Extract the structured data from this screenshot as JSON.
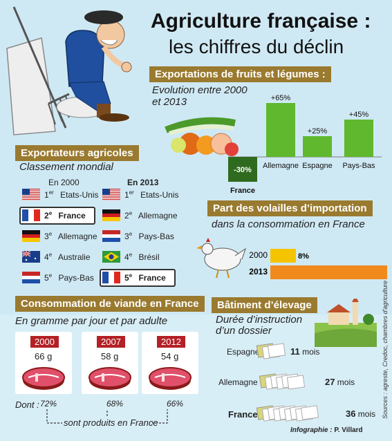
{
  "header": {
    "title": "Agriculture française :",
    "subtitle": "les chiffres du déclin"
  },
  "exports": {
    "heading": "Exportations de fruits et légumes :",
    "subtitle_line1": "Evolution entre 2000",
    "subtitle_line2": "et 2013",
    "chart_data": {
      "type": "bar",
      "title": "Exportations de fruits et légumes : Evolution entre 2000 et 2013",
      "categories": [
        "France",
        "Allemagne",
        "Espagne",
        "Pays-Bas"
      ],
      "values": [
        -30,
        65,
        25,
        45
      ],
      "labels": [
        "-30%",
        "+65%",
        "+25%",
        "+45%"
      ],
      "unit": "%"
    }
  },
  "exporters": {
    "heading": "Exportateurs agricoles",
    "subtitle": "Classement mondial",
    "col_2000": "En 2000",
    "col_2013": "En 2013",
    "rank_2000": [
      {
        "rank": "1",
        "suffix": "er",
        "country": "Etats-Unis",
        "flag": "usa-flag"
      },
      {
        "rank": "2",
        "suffix": "e",
        "country": "France",
        "flag": "france-flag"
      },
      {
        "rank": "3",
        "suffix": "e",
        "country": "Allemagne",
        "flag": "germany-flag"
      },
      {
        "rank": "4",
        "suffix": "e",
        "country": "Australie",
        "flag": "australia-flag"
      },
      {
        "rank": "5",
        "suffix": "e",
        "country": "Pays-Bas",
        "flag": "netherlands-flag"
      }
    ],
    "rank_2013": [
      {
        "rank": "1",
        "suffix": "er",
        "country": "Etats-Unis",
        "flag": "usa-flag"
      },
      {
        "rank": "2",
        "suffix": "e",
        "country": "Allemagne",
        "flag": "germany-flag"
      },
      {
        "rank": "3",
        "suffix": "e",
        "country": "Pays-Bas",
        "flag": "netherlands-flag"
      },
      {
        "rank": "4",
        "suffix": "e",
        "country": "Brésil",
        "flag": "brazil-flag"
      },
      {
        "rank": "5",
        "suffix": "e",
        "country": "France",
        "flag": "france-flag"
      }
    ]
  },
  "poultry": {
    "heading": "Part des volailles d’importation",
    "subtitle": "dans la consommation en France",
    "chart_data": {
      "type": "bar",
      "title": "Part des volailles d’importation dans la consommation en France",
      "categories": [
        "2000",
        "2013"
      ],
      "values": [
        8,
        40
      ],
      "labels": [
        "8%",
        "40%"
      ],
      "unit": "%"
    }
  },
  "meat": {
    "heading": "Consommation de viande en France",
    "subtitle": "En gramme par jour et par adulte",
    "dont_label": "Dont :",
    "footer_label": "sont produits en France",
    "items": [
      {
        "year": "2000",
        "grams": "66 g",
        "percent": "72%"
      },
      {
        "year": "2007",
        "grams": "58 g",
        "percent": "68%"
      },
      {
        "year": "2012",
        "grams": "54 g",
        "percent": "66%"
      }
    ]
  },
  "building": {
    "heading": "Bâtiment d’élevage",
    "subtitle_line1": "Durée d’instruction",
    "subtitle_line2": "d’un dossier",
    "rows": [
      {
        "country": "Espagne",
        "duration": "11",
        "unit": "mois"
      },
      {
        "country": "Allemagne",
        "duration": "27",
        "unit": "mois"
      },
      {
        "country": "France",
        "duration": "36",
        "unit": "mois"
      }
    ]
  },
  "credits": {
    "sources": "Sources : agreste, Credoc, chambres d'agriculture",
    "infographie_label": "Infographie :",
    "author": "P. Villard"
  },
  "colors": {
    "background": "#cfe9f4",
    "heading_band": "#9a7a2f",
    "bar_green": "#5fb82e",
    "bar_dark_green": "#2f6b1e",
    "bar_yellow": "#f5c400",
    "bar_orange": "#f08a1c",
    "year_red": "#b32025"
  }
}
